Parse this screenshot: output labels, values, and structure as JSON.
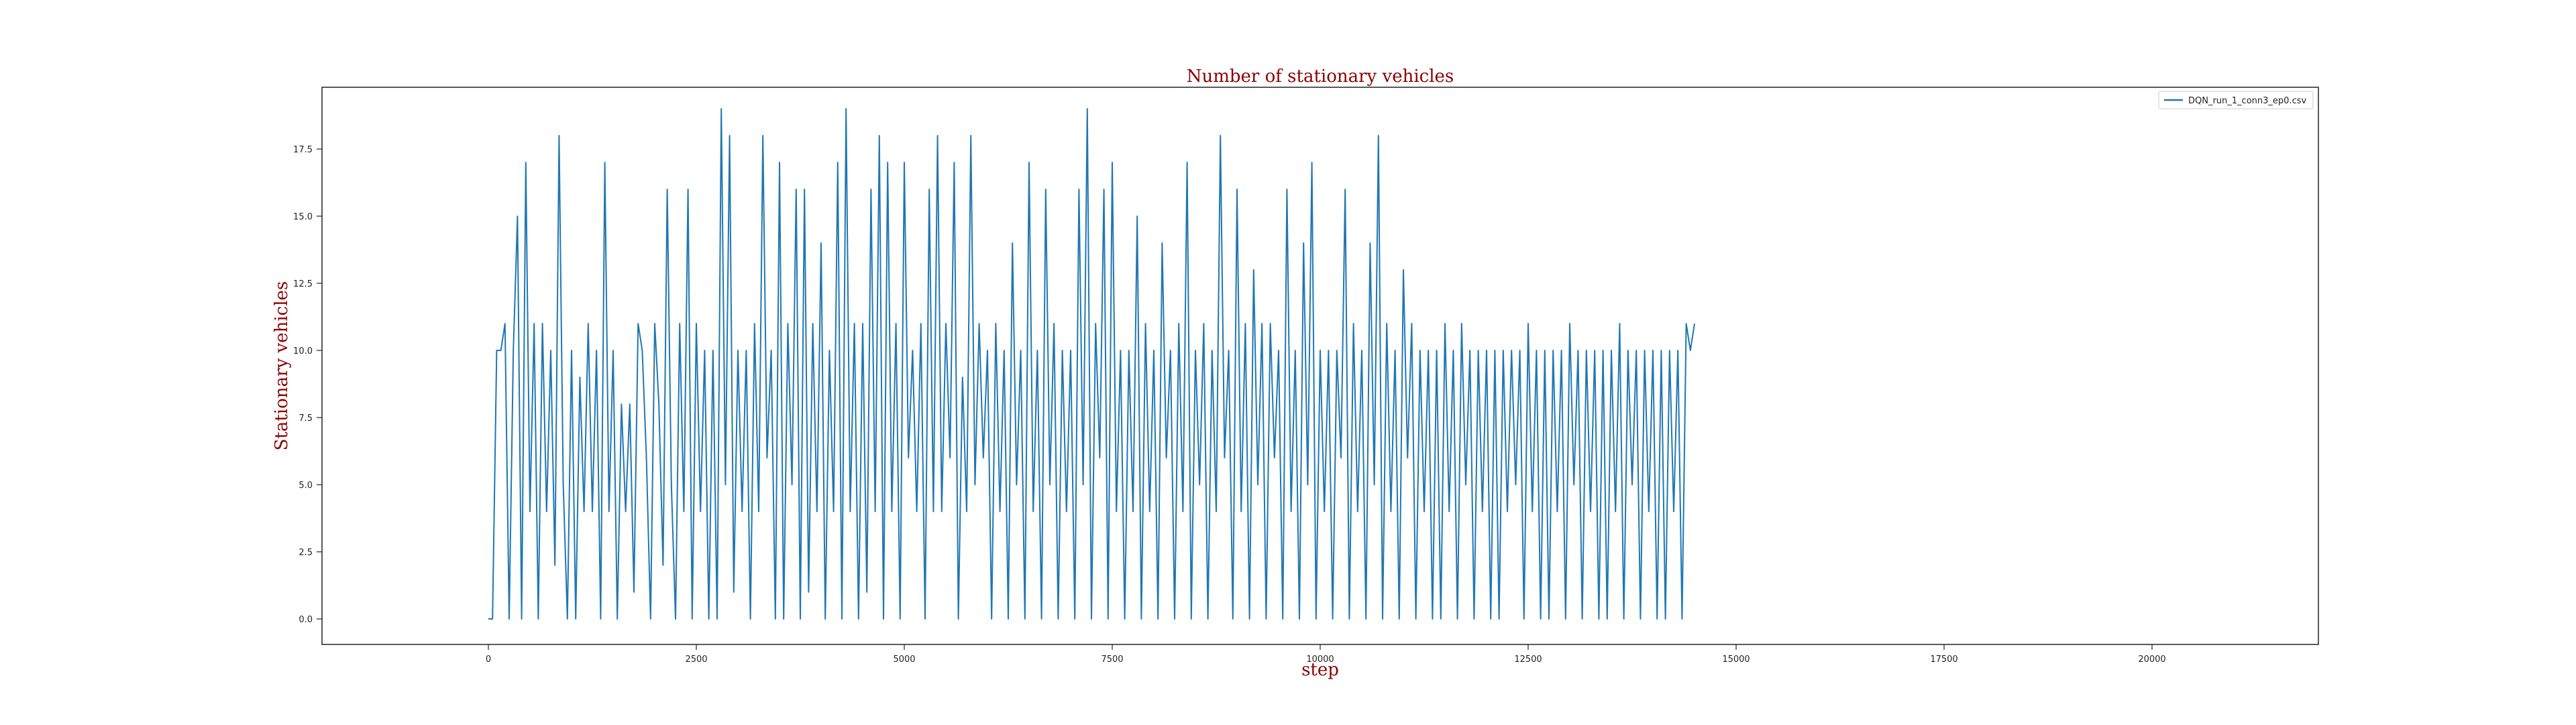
{
  "chart_data": {
    "type": "line",
    "title": "Number of stationary vehicles",
    "xlabel": "step",
    "ylabel": "Stationary vehicles",
    "xlim": [
      -2000,
      22000
    ],
    "ylim": [
      -0.95,
      19.8
    ],
    "x_ticks": [
      0,
      2500,
      5000,
      7500,
      10000,
      12500,
      15000,
      17500,
      20000
    ],
    "x_tick_labels": [
      "0",
      "2500",
      "5000",
      "7500",
      "10000",
      "12500",
      "15000",
      "17500",
      "20000"
    ],
    "y_ticks": [
      0.0,
      2.5,
      5.0,
      7.5,
      10.0,
      12.5,
      15.0,
      17.5
    ],
    "y_tick_labels": [
      "0.0",
      "2.5",
      "5.0",
      "7.5",
      "10.0",
      "12.5",
      "15.0",
      "17.5"
    ],
    "grid": false,
    "legend": "top-right",
    "series": [
      {
        "name": "DQN_run_1_conn3_ep0.csv",
        "color": "#1f77b4",
        "x_start": 0,
        "x_step": 50,
        "values": [
          0,
          0,
          10,
          10,
          11,
          0,
          10,
          15,
          0,
          17,
          4,
          11,
          0,
          11,
          4,
          10,
          2,
          18,
          5,
          0,
          10,
          0,
          9,
          4,
          11,
          4,
          10,
          0,
          17,
          4,
          10,
          0,
          8,
          4,
          8,
          1,
          11,
          10,
          6,
          0,
          11,
          8,
          2,
          16,
          5,
          0,
          11,
          4,
          16,
          0,
          11,
          4,
          10,
          0,
          10,
          0,
          19,
          5,
          18,
          1,
          10,
          4,
          10,
          0,
          11,
          4,
          18,
          6,
          10,
          0,
          17,
          0,
          11,
          5,
          16,
          0,
          16,
          1,
          11,
          4,
          14,
          0,
          10,
          4,
          17,
          0,
          19,
          4,
          11,
          0,
          11,
          1,
          16,
          4,
          18,
          0,
          17,
          4,
          11,
          0,
          17,
          6,
          10,
          4,
          11,
          0,
          16,
          4,
          18,
          4,
          11,
          6,
          17,
          0,
          9,
          4,
          18,
          5,
          11,
          6,
          10,
          0,
          11,
          4,
          10,
          0,
          14,
          5,
          10,
          0,
          17,
          4,
          10,
          0,
          16,
          5,
          11,
          0,
          10,
          4,
          10,
          0,
          16,
          5,
          19,
          0,
          11,
          6,
          16,
          0,
          17,
          4,
          10,
          0,
          10,
          4,
          15,
          0,
          11,
          4,
          10,
          0,
          14,
          6,
          10,
          0,
          11,
          4,
          17,
          0,
          10,
          5,
          11,
          0,
          10,
          4,
          18,
          6,
          10,
          0,
          16,
          4,
          11,
          0,
          13,
          5,
          11,
          0,
          11,
          6,
          10,
          0,
          16,
          4,
          10,
          0,
          14,
          5,
          17,
          0,
          10,
          4,
          10,
          0,
          10,
          6,
          16,
          0,
          11,
          4,
          10,
          0,
          14,
          5,
          18,
          0,
          11,
          4,
          10,
          0,
          13,
          6,
          11,
          0,
          10,
          4,
          10,
          0,
          10,
          0,
          11,
          4,
          10,
          0,
          11,
          5,
          10,
          0,
          10,
          4,
          10,
          0,
          10,
          0,
          10,
          4,
          10,
          5,
          10,
          0,
          11,
          4,
          10,
          0,
          10,
          0,
          10,
          4,
          10,
          0,
          11,
          5,
          10,
          0,
          10,
          4,
          10,
          0,
          10,
          0,
          10,
          4,
          11,
          0,
          10,
          5,
          10,
          0,
          10,
          4,
          10,
          0,
          10,
          0,
          10,
          4,
          10,
          0,
          11,
          10,
          11
        ]
      }
    ]
  }
}
